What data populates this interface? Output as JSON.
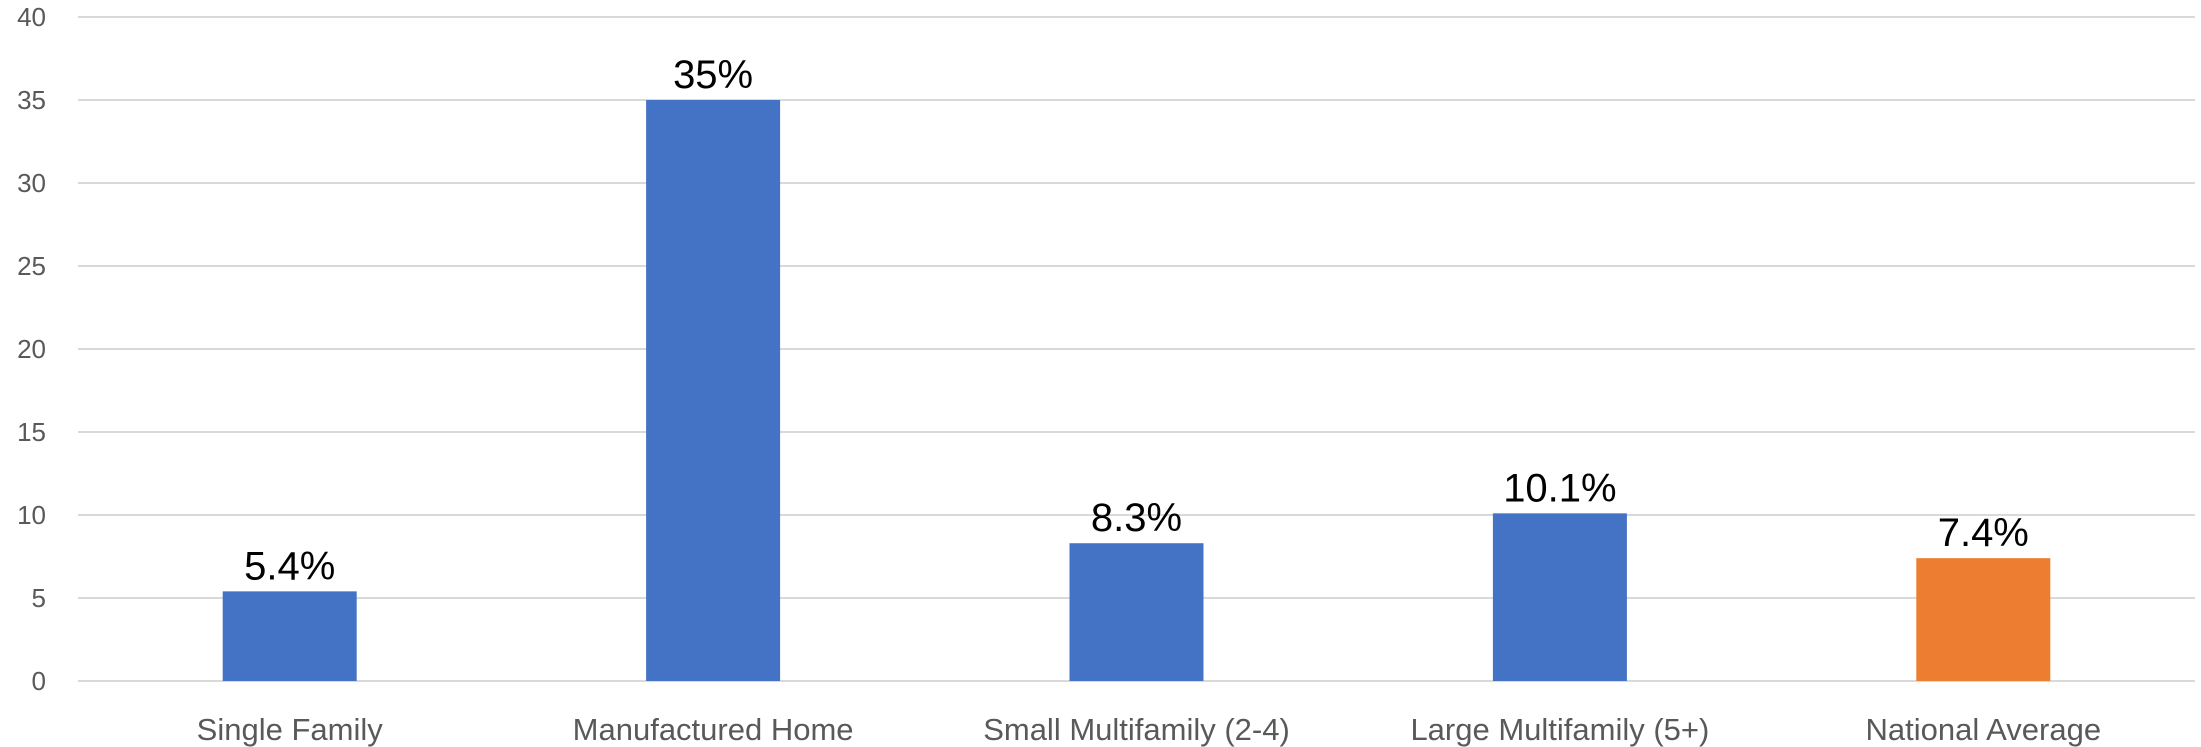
{
  "chart_data": {
    "type": "bar",
    "title": "",
    "xlabel": "",
    "ylabel": "",
    "categories": [
      "Single Family",
      "Manufactured Home",
      "Small Multifamily (2-4)",
      "Large Multifamily (5+)",
      "National Average"
    ],
    "values": [
      5.4,
      35,
      8.3,
      10.1,
      7.4
    ],
    "data_labels": [
      "5.4%",
      "35%",
      "8.3%",
      "10.1%",
      "7.4%"
    ],
    "bar_colors": [
      "#4472C4",
      "#4472C4",
      "#4472C4",
      "#4472C4",
      "#ED7D31"
    ],
    "ylim": [
      0,
      40
    ],
    "yticks": [
      0,
      5,
      10,
      15,
      20,
      25,
      30,
      35,
      40
    ],
    "grid": true,
    "legend": "none"
  }
}
